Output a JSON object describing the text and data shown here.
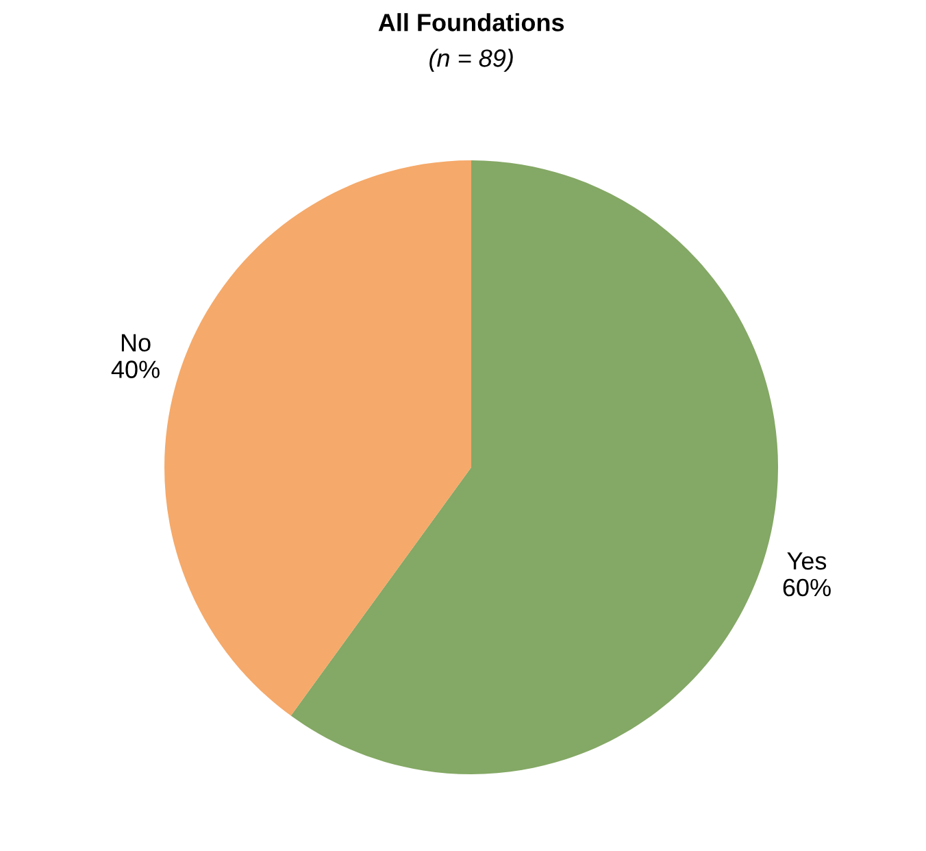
{
  "chart_data": {
    "type": "pie",
    "title": "All Foundations",
    "subtitle": "(n = 89)",
    "categories": [
      "Yes",
      "No"
    ],
    "values": [
      60,
      40
    ],
    "colors": [
      "#84a865",
      "#f5a96a"
    ],
    "value_labels": [
      "60%",
      "40%"
    ],
    "legend": false
  }
}
